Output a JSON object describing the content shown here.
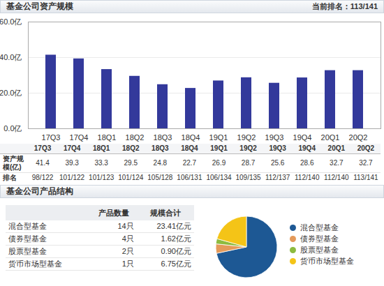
{
  "chart_data": [
    {
      "type": "bar",
      "title": "基金公司资产规模",
      "subtitle": "当前排名：113/141",
      "categories": [
        "17Q3",
        "17Q4",
        "18Q1",
        "18Q2",
        "18Q3",
        "18Q4",
        "19Q1",
        "19Q2",
        "19Q3",
        "19Q4",
        "20Q1",
        "20Q2"
      ],
      "values": [
        41.4,
        39.3,
        33.3,
        29.5,
        24.8,
        22.7,
        26.9,
        28.7,
        25.6,
        28.6,
        32.7,
        32.7
      ],
      "color": "#33399b",
      "ylim": [
        0,
        60
      ],
      "yticks": [
        {
          "value": 0,
          "label": "0.0亿"
        },
        {
          "value": 20,
          "label": "20.0亿"
        },
        {
          "value": 40,
          "label": "40.0亿"
        },
        {
          "value": 60,
          "label": "60.0亿"
        }
      ],
      "grid": true
    },
    {
      "type": "pie",
      "title": "基金公司产品结构",
      "categories": [
        "混合型基金",
        "债券型基金",
        "股票型基金",
        "货币市场型基金"
      ],
      "values": [
        23.41,
        1.62,
        0.9,
        6.75
      ],
      "colors": [
        "#1d5894",
        "#e49a5a",
        "#8dbb3f",
        "#f4c417"
      ],
      "legend": "right"
    }
  ],
  "asset_table": {
    "row_labels": [
      "资产规模(亿)",
      "排名"
    ],
    "ranks": [
      "98/122",
      "101/122",
      "101/123",
      "101/124",
      "105/128",
      "106/131",
      "106/134",
      "109/135",
      "112/137",
      "112/140",
      "112/140",
      "113/141"
    ]
  },
  "product_table": {
    "columns": [
      "产品数量",
      "规模合计"
    ],
    "rows": [
      [
        "混合型基金",
        "14只",
        "23.41亿元"
      ],
      [
        "债券型基金",
        "4只",
        "1.62亿元"
      ],
      [
        "股票型基金",
        "2只",
        "0.90亿元"
      ],
      [
        "货币市场型基金",
        "1只",
        "6.75亿元"
      ]
    ]
  }
}
